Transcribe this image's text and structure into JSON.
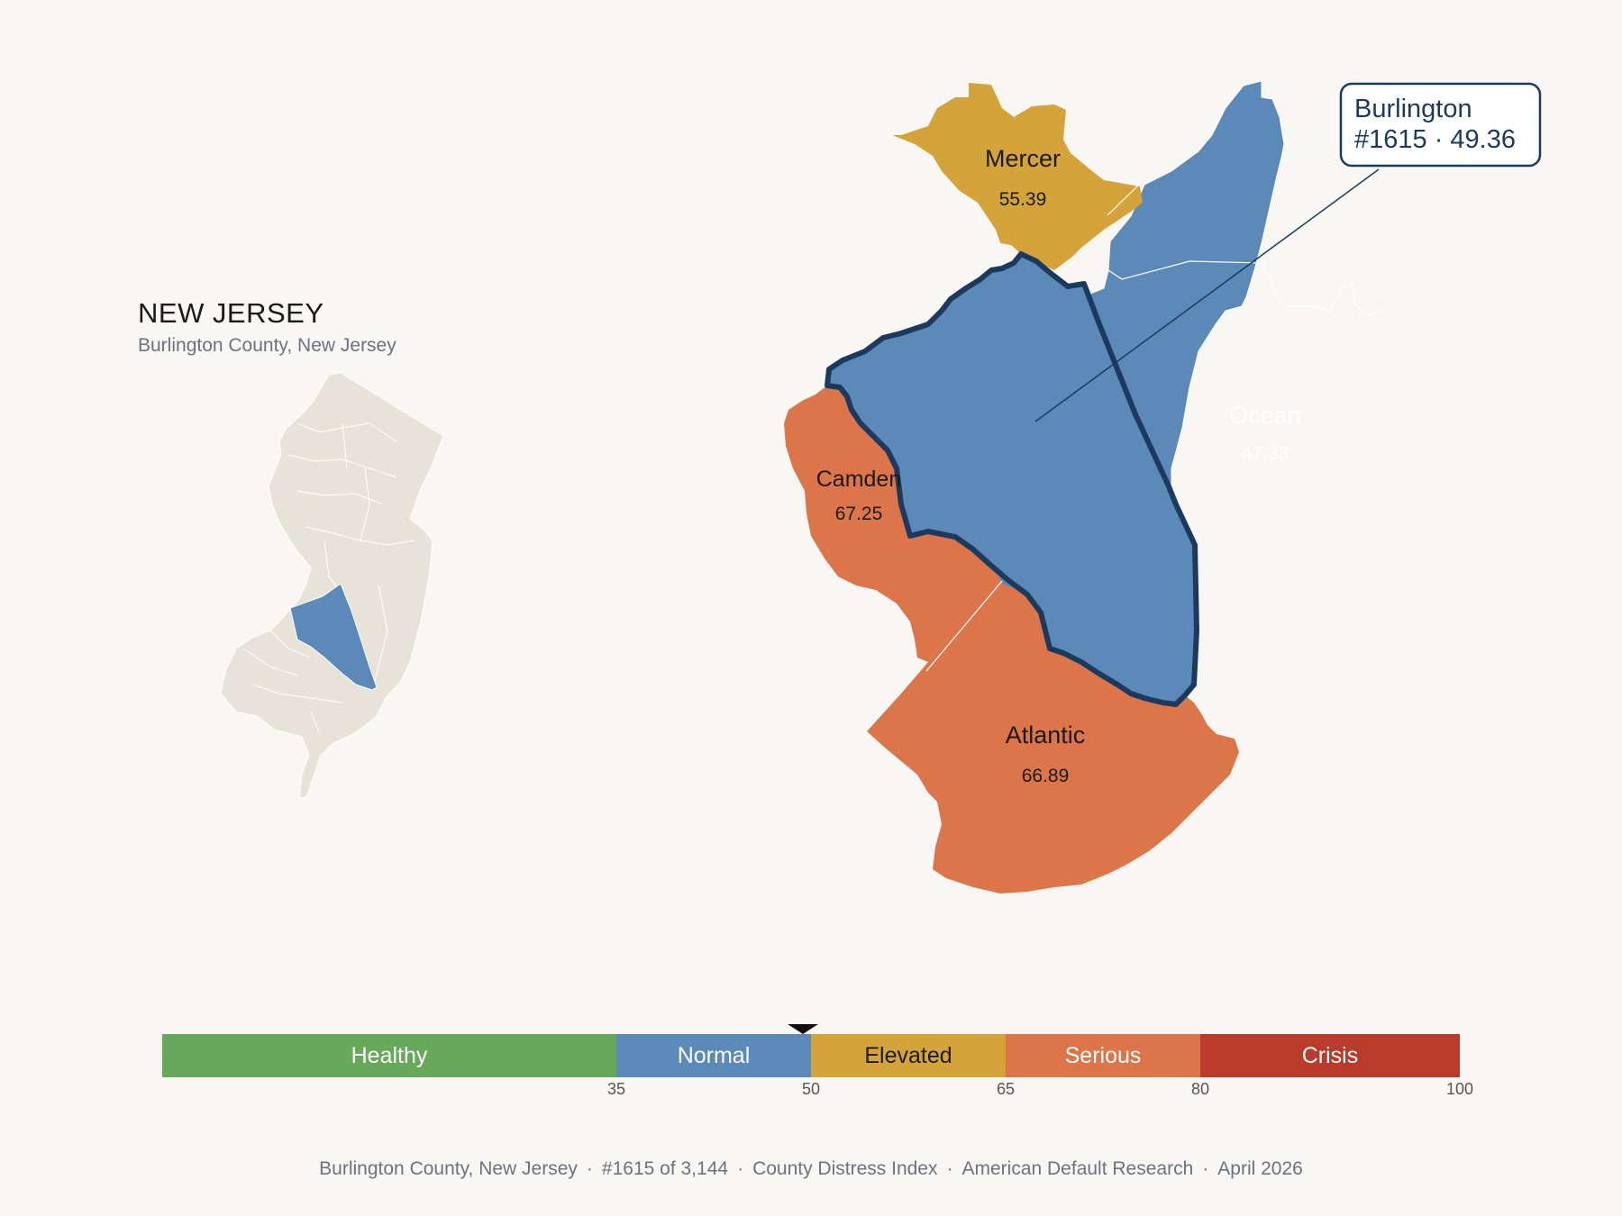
{
  "state": {
    "title": "NEW JERSEY",
    "subtitle": "Burlington County, New Jersey"
  },
  "focus": {
    "name": "Burlington",
    "rank_line": "#1615 · 49.36",
    "color": "#5b89b8",
    "outline": "#1c3a5e"
  },
  "counties": [
    {
      "name": "Mercer",
      "value": "55.39",
      "color": "#d4a33a",
      "text_color": "#1a1a1a"
    },
    {
      "name": "Ocean",
      "value": "47.33",
      "color": "#5b89b8",
      "text_color": "#ffffff"
    },
    {
      "name": "Camden",
      "value": "67.25",
      "color": "#dc764a",
      "text_color": "#1a1a1a"
    },
    {
      "name": "Atlantic",
      "value": "66.89",
      "color": "#dc764a",
      "text_color": "#1a1a1a"
    }
  ],
  "scale": {
    "segments": [
      {
        "label": "Healthy",
        "from": 0,
        "to": 35,
        "color": "#67a85a",
        "text_color": "#ffffff"
      },
      {
        "label": "Normal",
        "from": 35,
        "to": 50,
        "color": "#5b89b8",
        "text_color": "#ffffff"
      },
      {
        "label": "Elevated",
        "from": 50,
        "to": 65,
        "color": "#d4a33a",
        "text_color": "#1a1a1a"
      },
      {
        "label": "Serious",
        "from": 65,
        "to": 80,
        "color": "#dc764a",
        "text_color": "#ffffff"
      },
      {
        "label": "Crisis",
        "from": 80,
        "to": 100,
        "color": "#b83b2b",
        "text_color": "#ffffff"
      }
    ],
    "ticks": [
      "35",
      "50",
      "65",
      "80",
      "100"
    ],
    "marker_value": 49.36
  },
  "footer": {
    "county": "Burlington County, New Jersey",
    "rank": "#1615 of 3,144",
    "index": "County Distress Index",
    "source": "American Default Research",
    "date": "April 2026"
  },
  "colors": {
    "background": "#f9f7f3",
    "inset_fill": "#e8e3d8"
  }
}
